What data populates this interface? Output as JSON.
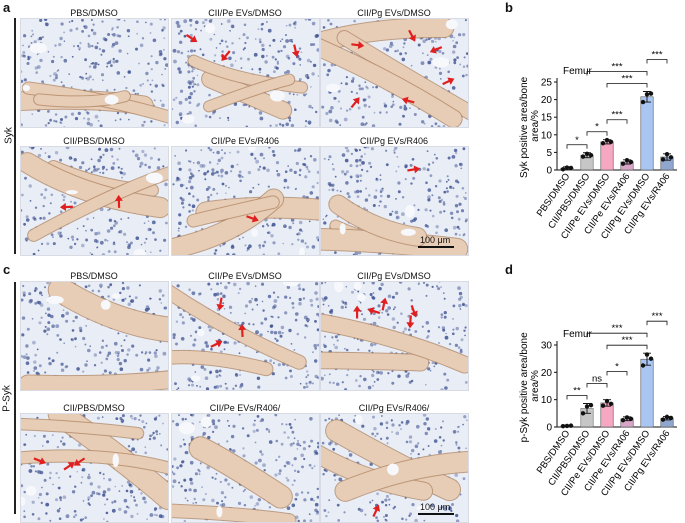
{
  "panels": {
    "a": {
      "letter": "a",
      "stain": "Syk",
      "scalebar": "100 μm",
      "tiles": [
        "PBS/DMSO",
        "CII/Pe EVs/DMSO",
        "CII/Pg EVs/DMSO",
        "CII/PBS/DMSO",
        "CII/Pe EVs/R406",
        "CII/Pg EVs/R406"
      ]
    },
    "c": {
      "letter": "c",
      "stain": "P-Syk",
      "scalebar": "100 μm",
      "tiles": [
        "PBS/DMSO",
        "CII/Pe EVs/DMSO",
        "CII/Pg EVs/DMSO",
        "CII/PBS/DMSO",
        "CII/Pe EVs/R406/",
        "CII/Pg EVs/R406/"
      ]
    },
    "b": {
      "letter": "b"
    },
    "d": {
      "letter": "d"
    }
  },
  "colors": {
    "tissue_bg": "#e9edf6",
    "nuclei": "#3b4f8f",
    "bone": "#e8cdb6",
    "bone_edge": "#b08868",
    "arrow": "#e02020",
    "bar_pbs": "#d9d9d9",
    "bar_cii": "#bdbdbd",
    "bar_pink": "#f6a7c1",
    "bar_pe_r406": "#d7a6c6",
    "bar_blue": "#a9c6f2",
    "bar_pg_r406": "#8fa6cf"
  },
  "chart_data": [
    {
      "type": "bar",
      "title": "Femur",
      "ylabel": "Syk positive area/bone area/%",
      "categories": [
        "PBS/DMSO",
        "CII/PBS/DMSO",
        "CII/Pe EVs/DMSO",
        "CII/Pe EVs/R406",
        "CII/Pg EVs/DMSO",
        "CII/Pg EVs/R406"
      ],
      "values": [
        0.5,
        4.2,
        8.0,
        2.3,
        20.8,
        3.7
      ],
      "errors": [
        0.4,
        0.7,
        0.6,
        0.6,
        1.5,
        0.9
      ],
      "points": [
        [
          0.2,
          0.7,
          0.6
        ],
        [
          3.8,
          4.6,
          4.2
        ],
        [
          7.6,
          8.5,
          8.0
        ],
        [
          1.8,
          2.8,
          2.3
        ],
        [
          19.3,
          21.5,
          21.7
        ],
        [
          3.0,
          4.5,
          3.6
        ]
      ],
      "ylim": [
        0,
        25
      ],
      "yticks": [
        0,
        5,
        10,
        15,
        20,
        25
      ],
      "significance": [
        {
          "from": 0,
          "to": 1,
          "label": "*"
        },
        {
          "from": 1,
          "to": 2,
          "label": "*"
        },
        {
          "from": 2,
          "to": 3,
          "label": "***"
        },
        {
          "from": 2,
          "to": 4,
          "label": "***"
        },
        {
          "from": 1,
          "to": 4,
          "label": "***"
        },
        {
          "from": 4,
          "to": 5,
          "label": "***"
        }
      ]
    },
    {
      "type": "bar",
      "title": "Femur",
      "ylabel": "p-Syk positive area/bone area/%",
      "categories": [
        "PBS/DMSO",
        "CII/PBS/DMSO",
        "CII/Pe EVs/DMSO",
        "CII/Pe EVs/R406",
        "CII/Pg EVs/DMSO",
        "CII/Pg EVs/R406"
      ],
      "values": [
        0.4,
        6.8,
        8.8,
        3.0,
        24.8,
        3.2
      ],
      "errors": [
        0.3,
        1.8,
        1.2,
        0.7,
        2.2,
        0.6
      ],
      "points": [
        [
          0.3,
          0.4,
          0.5
        ],
        [
          5.0,
          7.5,
          8.0
        ],
        [
          7.8,
          9.5,
          8.5
        ],
        [
          2.5,
          3.5,
          3.0
        ],
        [
          22.5,
          26.5,
          25.0
        ],
        [
          2.7,
          3.7,
          3.3
        ]
      ],
      "ylim": [
        0,
        30
      ],
      "yticks": [
        0,
        10,
        20,
        30
      ],
      "significance": [
        {
          "from": 0,
          "to": 1,
          "label": "**"
        },
        {
          "from": 1,
          "to": 2,
          "label": "ns"
        },
        {
          "from": 2,
          "to": 3,
          "label": "*"
        },
        {
          "from": 2,
          "to": 4,
          "label": "***"
        },
        {
          "from": 1,
          "to": 4,
          "label": "***"
        },
        {
          "from": 4,
          "to": 5,
          "label": "***"
        }
      ]
    }
  ]
}
